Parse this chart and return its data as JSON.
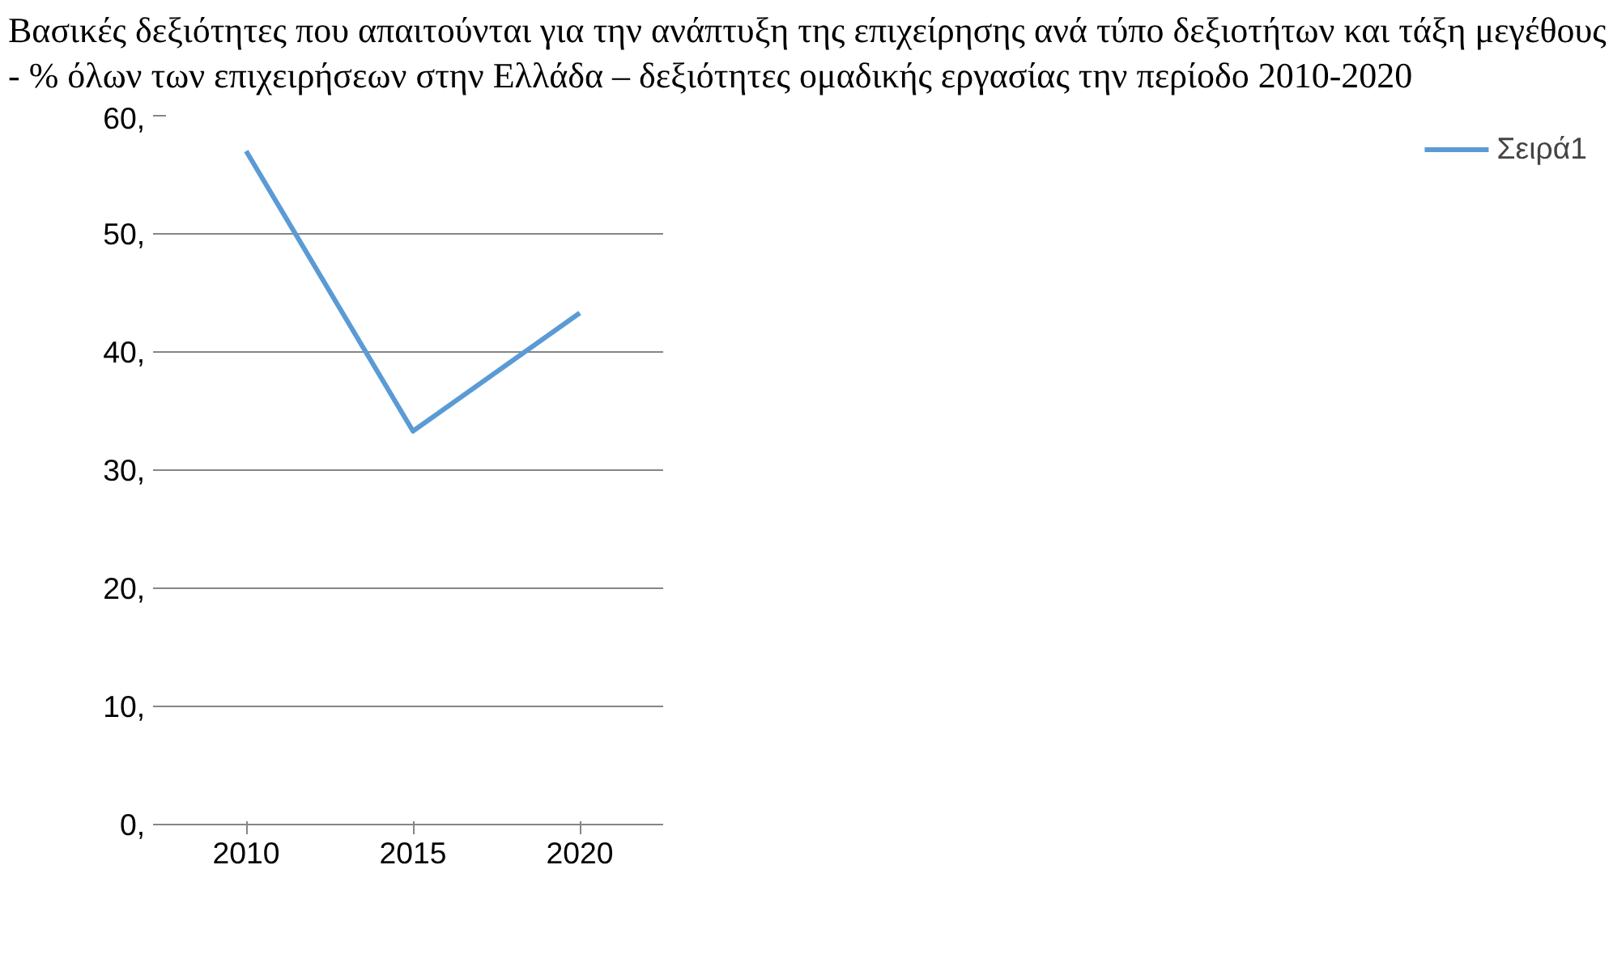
{
  "chart_data": {
    "type": "line",
    "title": "Βασικές δεξιότητες που απαιτούνται για την ανάπτυξη της επιχείρησης ανά τύπο δεξιοτήτων και τάξη μεγέθους - % όλων των επιχειρήσεων στην Ελλάδα – δεξιότητες ομαδικής εργασίας την περίοδο 2010-2020",
    "categories": [
      "2010",
      "2015",
      "2020"
    ],
    "series": [
      {
        "name": "Σειρά1",
        "color": "#5b9bd5",
        "values": [
          57,
          33.3,
          43.3
        ]
      }
    ],
    "ylim": [
      0,
      60
    ],
    "yticks": [
      {
        "value": 0,
        "label": "0,"
      },
      {
        "value": 10,
        "label": "10,"
      },
      {
        "value": 20,
        "label": "20,"
      },
      {
        "value": 30,
        "label": "30,"
      },
      {
        "value": 40,
        "label": "40,"
      },
      {
        "value": 50,
        "label": "50,"
      },
      {
        "value": 60,
        "label": "60,"
      }
    ],
    "grid": "y",
    "legend": "right",
    "marker": "none",
    "line_style": "solid"
  }
}
